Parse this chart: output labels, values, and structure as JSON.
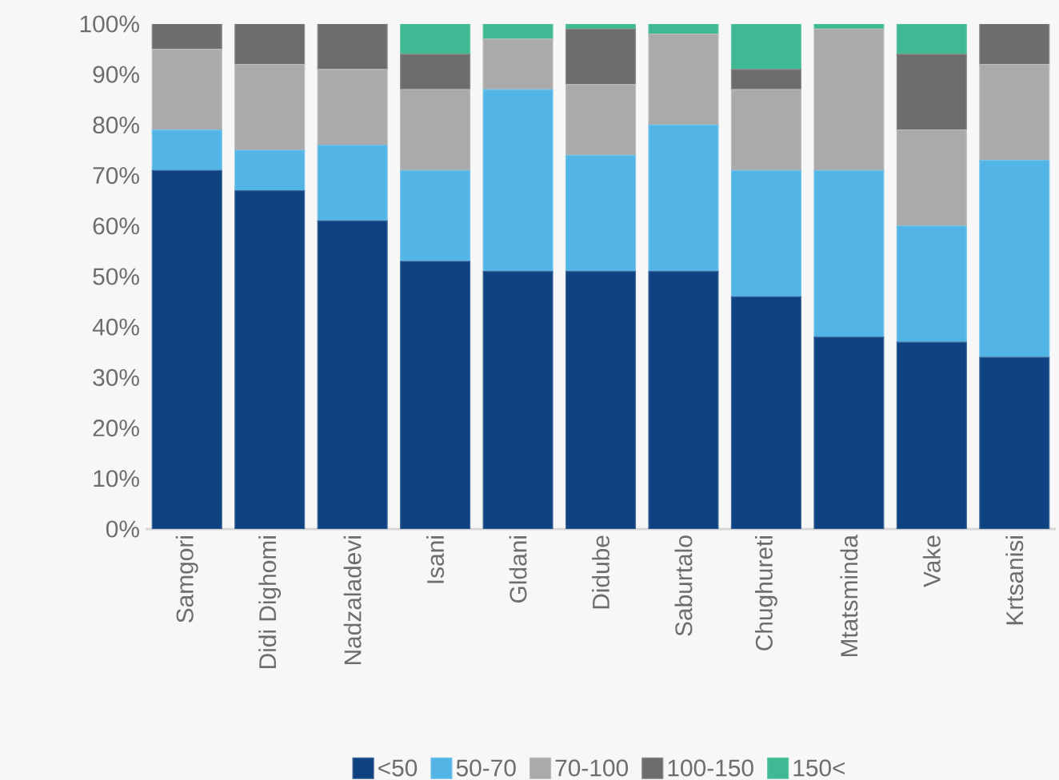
{
  "chart_data": {
    "type": "bar",
    "stacked": true,
    "categories": [
      "Samgori",
      "Didi Dighomi",
      "Nadzaladevi",
      "Isani",
      "Gldani",
      "Didube",
      "Saburtalo",
      "Chughureti",
      "Mtatsminda",
      "Vake",
      "Krtsanisi"
    ],
    "series": [
      {
        "name": "<50",
        "color": "#0f4280",
        "values": [
          71,
          67,
          61,
          53,
          51,
          51,
          51,
          46,
          38,
          37,
          34
        ]
      },
      {
        "name": "50-70",
        "color": "#53b4e6",
        "values": [
          8,
          8,
          15,
          18,
          36,
          23,
          29,
          25,
          33,
          23,
          39
        ]
      },
      {
        "name": "70-100",
        "color": "#aaaaaa",
        "values": [
          16,
          17,
          15,
          16,
          10,
          14,
          18,
          16,
          28,
          19,
          19
        ]
      },
      {
        "name": "100-150",
        "color": "#6d6d6d",
        "values": [
          5,
          8,
          9,
          7,
          0,
          11,
          0,
          4,
          0,
          15,
          8
        ]
      },
      {
        "name": "150<",
        "color": "#3fb993",
        "values": [
          0,
          0,
          0,
          6,
          3,
          1,
          2,
          9,
          1,
          6,
          0
        ]
      }
    ],
    "ylim": [
      0,
      100
    ],
    "yticks": [
      {
        "value": 0,
        "label": "0%"
      },
      {
        "value": 10,
        "label": "10%"
      },
      {
        "value": 20,
        "label": "20%"
      },
      {
        "value": 30,
        "label": "30%"
      },
      {
        "value": 40,
        "label": "40%"
      },
      {
        "value": 50,
        "label": "50%"
      },
      {
        "value": 60,
        "label": "60%"
      },
      {
        "value": 70,
        "label": "70%"
      },
      {
        "value": 80,
        "label": "80%"
      },
      {
        "value": 90,
        "label": "90%"
      },
      {
        "value": 100,
        "label": "100%"
      }
    ],
    "legend": "bottom"
  }
}
